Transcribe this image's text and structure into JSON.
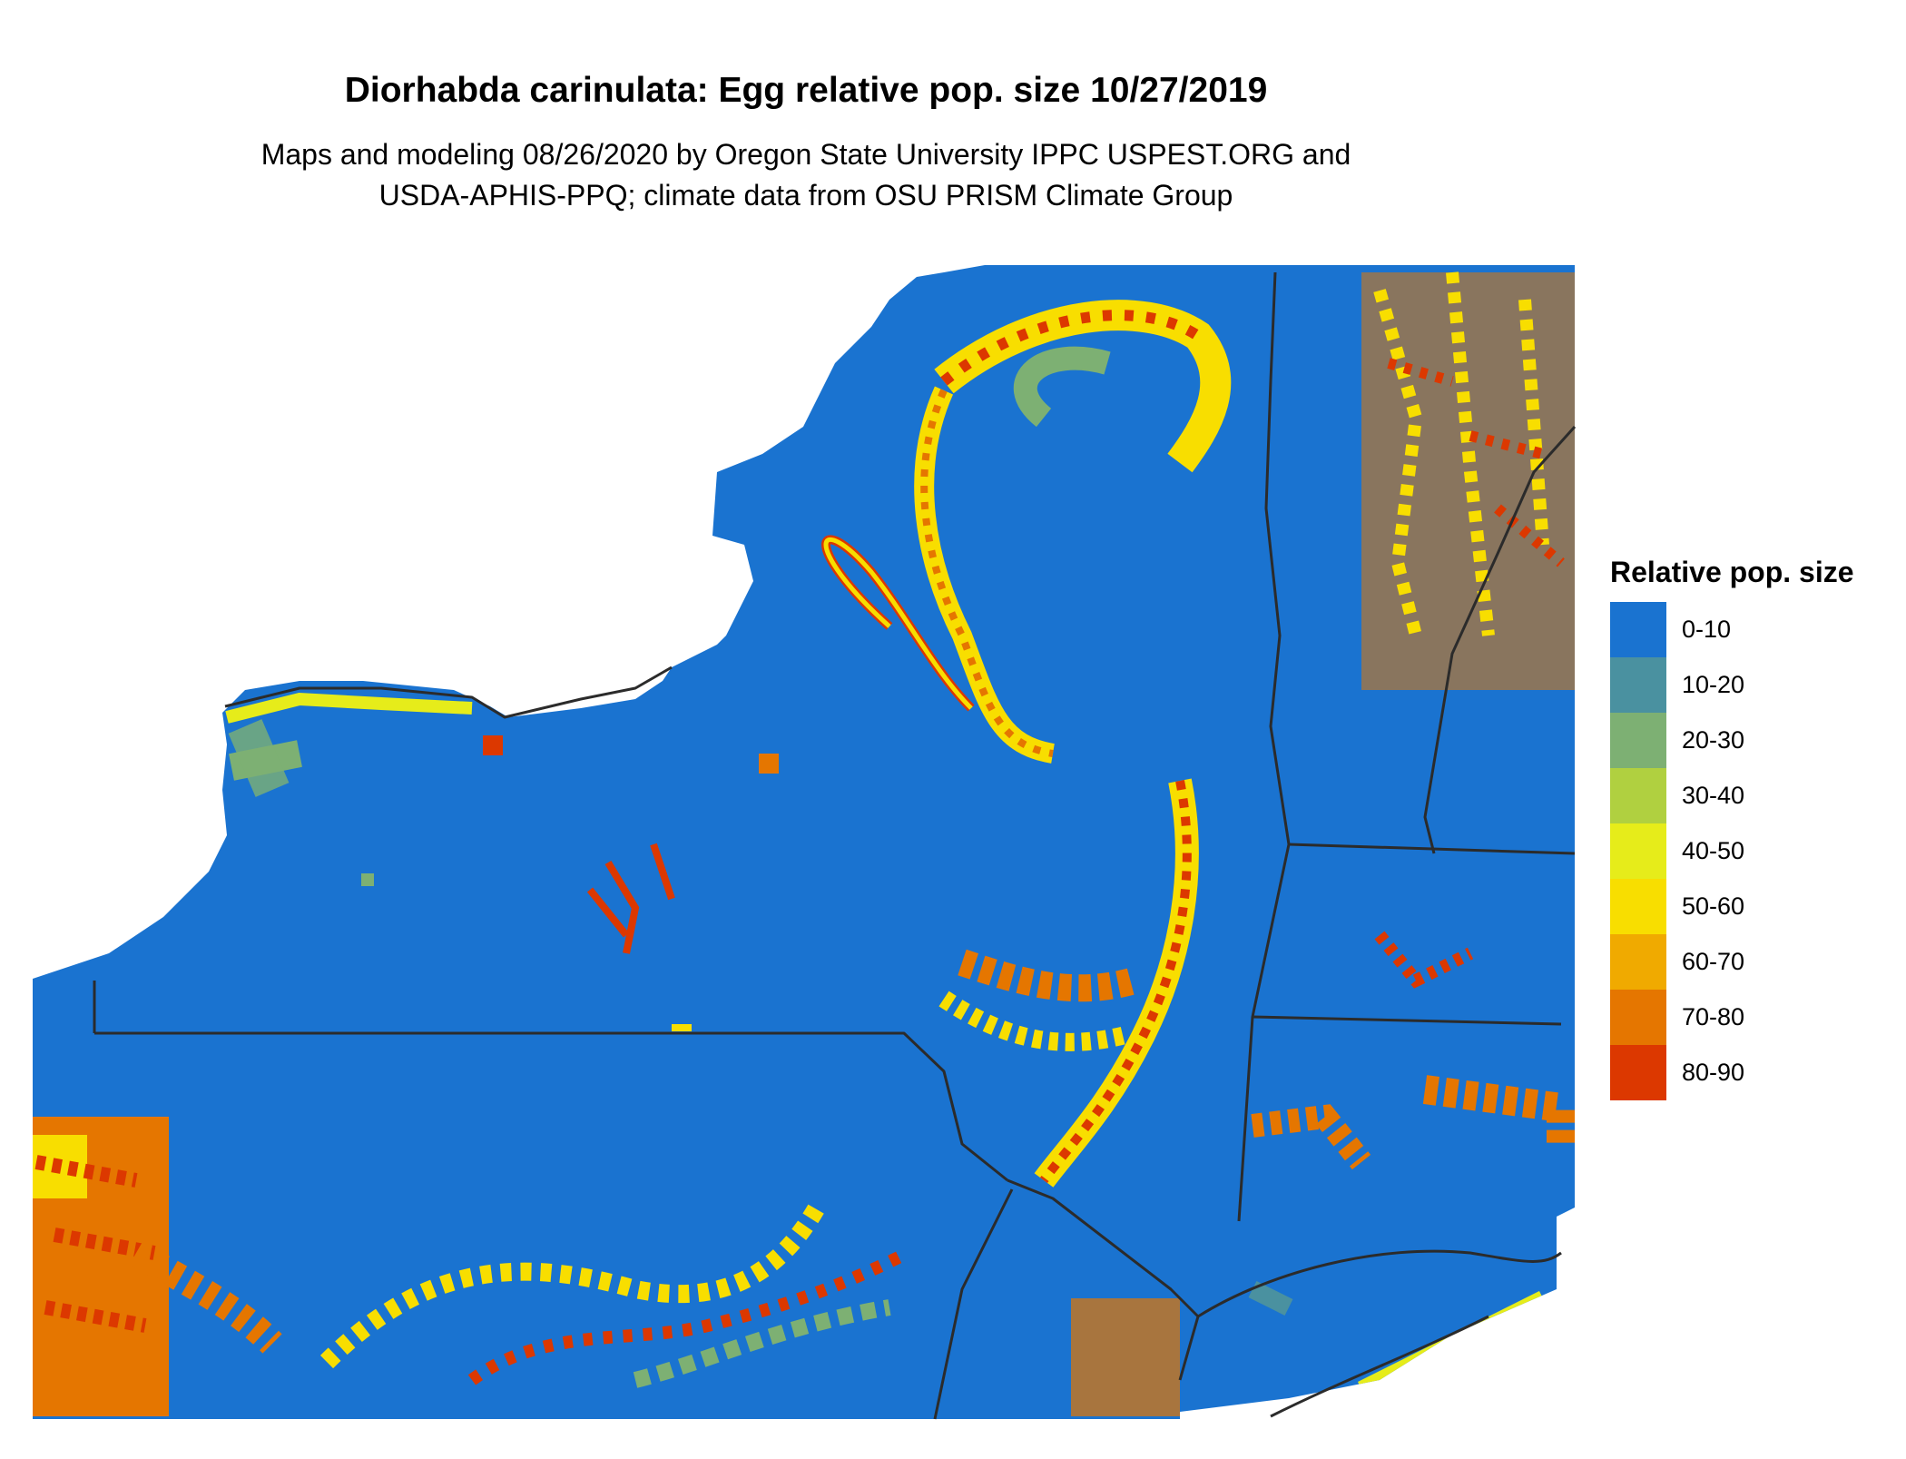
{
  "header": {
    "title": "Diorhabda carinulata: Egg relative pop. size 10/27/2019",
    "subtitle_line1": "Maps and modeling 08/26/2020 by Oregon State University IPPC USPEST.ORG and",
    "subtitle_line2": "USDA-APHIS-PPQ; climate data from OSU PRISM Climate Group"
  },
  "legend": {
    "title": "Relative pop. size",
    "items": [
      {
        "label": "0-10",
        "color": "#1a73d0"
      },
      {
        "label": "10-20",
        "color": "#4a91a0"
      },
      {
        "label": "20-30",
        "color": "#7db073"
      },
      {
        "label": "30-40",
        "color": "#b0d040"
      },
      {
        "label": "40-50",
        "color": "#e6ec1a"
      },
      {
        "label": "50-60",
        "color": "#f8de00"
      },
      {
        "label": "60-70",
        "color": "#f0aa00"
      },
      {
        "label": "70-80",
        "color": "#e57600"
      },
      {
        "label": "80-90",
        "color": "#dc3800"
      }
    ]
  },
  "map": {
    "region": "New York and surrounding northeastern states",
    "border_color": "#2b2b2b"
  }
}
